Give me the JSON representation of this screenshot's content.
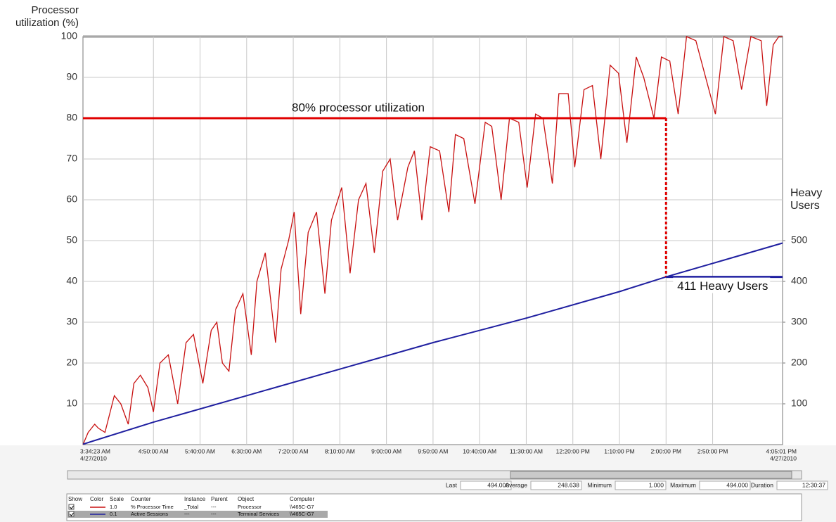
{
  "chart_data": {
    "type": "line",
    "y_label": "Processor utilization (%)",
    "y2_label": "Heavy Users",
    "ylim": [
      0,
      100
    ],
    "yticks": [
      10,
      20,
      30,
      40,
      50,
      60,
      70,
      80,
      90,
      100
    ],
    "y2lim": [
      0,
      1000
    ],
    "y2ticks": [
      100,
      200,
      300,
      400,
      500
    ],
    "xlim": [
      "03:34:23",
      "16:05:01"
    ],
    "xticks": [
      {
        "value": "03:34:23",
        "label": "3:34:23 AM",
        "date": "4/27/2010"
      },
      {
        "value": "04:50:00",
        "label": "4:50:00 AM"
      },
      {
        "value": "05:40:00",
        "label": "5:40:00 AM"
      },
      {
        "value": "06:30:00",
        "label": "6:30:00 AM"
      },
      {
        "value": "07:20:00",
        "label": "7:20:00 AM"
      },
      {
        "value": "08:10:00",
        "label": "8:10:00 AM"
      },
      {
        "value": "09:00:00",
        "label": "9:00:00 AM"
      },
      {
        "value": "09:50:00",
        "label": "9:50:00 AM"
      },
      {
        "value": "10:40:00",
        "label": "10:40:00 AM"
      },
      {
        "value": "11:30:00",
        "label": "11:30:00 AM"
      },
      {
        "value": "12:20:00",
        "label": "12:20:00 PM"
      },
      {
        "value": "13:10:00",
        "label": "1:10:00 PM"
      },
      {
        "value": "14:00:00",
        "label": "2:00:00 PM"
      },
      {
        "value": "14:50:00",
        "label": "2:50:00 PM"
      },
      {
        "value": "16:05:01",
        "label": "4:05:01 PM",
        "date": "4/27/2010"
      }
    ],
    "grid": true,
    "series": [
      {
        "name": "% Processor Time",
        "color": "#c81010",
        "scale": "1.0",
        "instance": "_Total",
        "parent": "---",
        "object": "Processor",
        "computer": "\\\\465C-G7",
        "x": [
          "03:34:23",
          "03:40",
          "03:47",
          "03:51",
          "03:58",
          "04:08",
          "04:15",
          "04:23",
          "04:29",
          "04:36",
          "04:44",
          "04:50",
          "04:57",
          "05:06",
          "05:16",
          "05:25",
          "05:33",
          "05:43",
          "05:52",
          "05:58",
          "06:04",
          "06:11",
          "06:18",
          "06:26",
          "06:35",
          "06:41",
          "06:50",
          "07:01",
          "07:07",
          "07:15",
          "07:21",
          "07:28",
          "07:36",
          "07:45",
          "07:54",
          "08:01",
          "08:12",
          "08:21",
          "08:30",
          "08:38",
          "08:47",
          "08:56",
          "09:04",
          "09:12",
          "09:23",
          "09:30",
          "09:38",
          "09:47",
          "09:57",
          "10:07",
          "10:14",
          "10:23",
          "10:35",
          "10:46",
          "10:53",
          "11:03",
          "11:12",
          "11:22",
          "11:31",
          "11:40",
          "11:48",
          "11:58",
          "12:05",
          "12:15",
          "12:22",
          "12:32",
          "12:41",
          "12:50",
          "13:00",
          "13:09",
          "13:18",
          "13:28",
          "13:36",
          "13:47",
          "13:55",
          "14:04",
          "14:13",
          "14:22",
          "14:32",
          "14:53",
          "15:02",
          "15:12",
          "15:21",
          "15:31",
          "15:42",
          "15:48",
          "15:55",
          "16:01",
          "16:05:01"
        ],
        "values": [
          0,
          3,
          5,
          4,
          3,
          12,
          10,
          5,
          15,
          17,
          14,
          8,
          20,
          22,
          10,
          25,
          27,
          15,
          28,
          30,
          20,
          18,
          33,
          37,
          22,
          40,
          47,
          25,
          43,
          50,
          57,
          32,
          52,
          57,
          37,
          55,
          63,
          42,
          60,
          64,
          47,
          67,
          70,
          55,
          68,
          72,
          55,
          73,
          72,
          57,
          76,
          75,
          59,
          79,
          78,
          60,
          80,
          79,
          63,
          81,
          80,
          64,
          86,
          86,
          68,
          87,
          88,
          70,
          93,
          91,
          74,
          95,
          90,
          80,
          95,
          94,
          81,
          100,
          99,
          81,
          100,
          99,
          87,
          100,
          99,
          83,
          98,
          100,
          100
        ]
      },
      {
        "name": "Active Sessions",
        "color": "#1f1fa0",
        "scale": "0.1",
        "instance": "---",
        "parent": "---",
        "object": "Terminal Services",
        "computer": "\\\\465C-G7",
        "axis": "y2",
        "x": [
          "03:34:23",
          "04:50",
          "06:30",
          "08:10",
          "09:50",
          "11:30",
          "13:10",
          "14:00",
          "16:05:01"
        ],
        "values": [
          1,
          55,
          120,
          185,
          250,
          310,
          375,
          411,
          494
        ]
      }
    ],
    "annotations": [
      {
        "text": "80% processor utilization",
        "y": 80,
        "x": [
          "03:34:23",
          "14:00"
        ]
      },
      {
        "text": "411 Heavy Users",
        "y2": 411,
        "x": [
          "14:00",
          "16:05:01"
        ]
      }
    ]
  },
  "stats": [
    {
      "label": "Last",
      "value": "494.000"
    },
    {
      "label": "Average",
      "value": "248.638"
    },
    {
      "label": "Minimum",
      "value": "1.000"
    },
    {
      "label": "Maximum",
      "value": "494.000"
    },
    {
      "label": "Duration",
      "value": "12:30:37"
    }
  ],
  "counter_table": {
    "headers": [
      "Show",
      "Color",
      "Scale",
      "Counter",
      "Instance",
      "Parent",
      "Object",
      "Computer"
    ]
  }
}
